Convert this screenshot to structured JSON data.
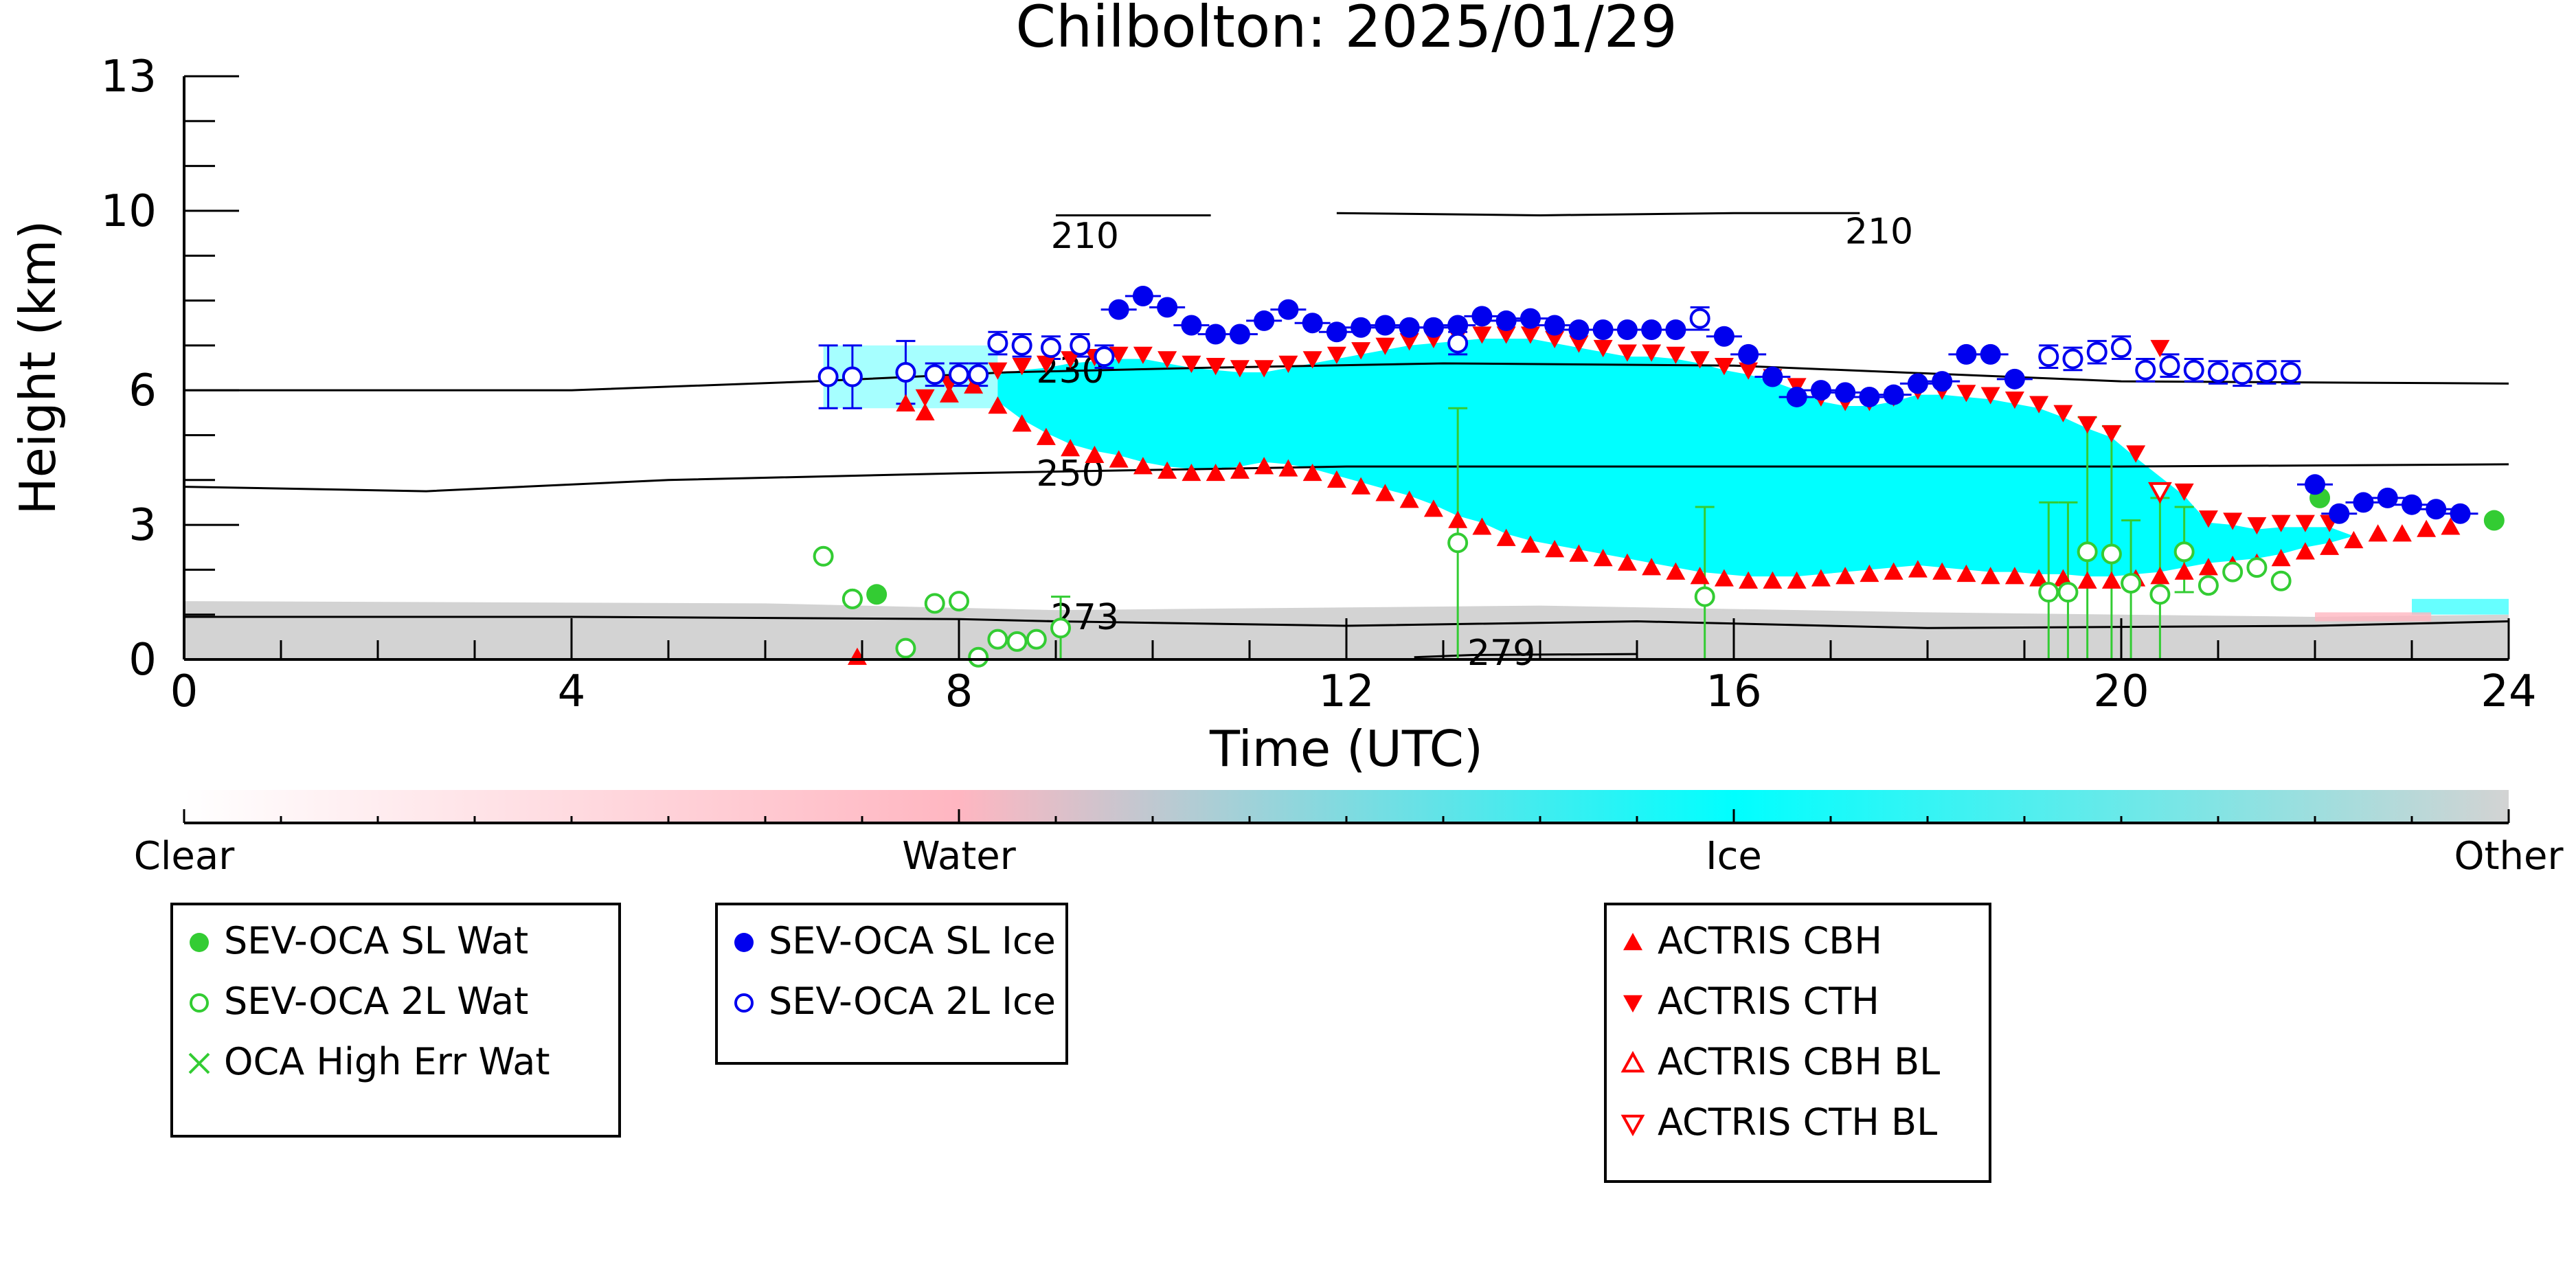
{
  "chart_data": {
    "type": "scatter",
    "title": "Chilbolton: 2025/01/29",
    "xlabel": "Time (UTC)",
    "ylabel": "Height (km)",
    "xlim": [
      0,
      24
    ],
    "ylim": [
      0,
      13
    ],
    "x_ticks": [
      "0",
      "4",
      "8",
      "12",
      "16",
      "20",
      "24"
    ],
    "y_ticks": [
      "0",
      "3",
      "6",
      "10",
      "13"
    ],
    "grid": false,
    "colorbar": {
      "labels": [
        "Clear",
        "Water",
        "Ice",
        "Other"
      ],
      "colors": {
        "clear": "#ffffff",
        "water": "#ffb6c1",
        "ice": "#00ffff",
        "other": "#d3d3d3"
      }
    },
    "contours": [
      {
        "label": "210",
        "points": [
          [
            9.0,
            9.9
          ],
          [
            10.6,
            9.9
          ]
        ]
      },
      {
        "label": "210",
        "points": [
          [
            11.9,
            9.95
          ],
          [
            14.0,
            9.9
          ],
          [
            16.0,
            9.95
          ],
          [
            17.3,
            9.95
          ]
        ]
      },
      {
        "label": "230",
        "points": [
          [
            0,
            6.0
          ],
          [
            4.0,
            6.0
          ],
          [
            6.5,
            6.2
          ],
          [
            8.5,
            6.4
          ],
          [
            10.5,
            6.5
          ],
          [
            13.0,
            6.6
          ],
          [
            16.0,
            6.55
          ],
          [
            20.0,
            6.2
          ],
          [
            24.0,
            6.15
          ]
        ]
      },
      {
        "label": "250",
        "points": [
          [
            0,
            3.85
          ],
          [
            2.5,
            3.75
          ],
          [
            5.0,
            4.0
          ],
          [
            8.0,
            4.15
          ],
          [
            12.0,
            4.3
          ],
          [
            16.0,
            4.3
          ],
          [
            20.0,
            4.3
          ],
          [
            24.0,
            4.35
          ]
        ]
      },
      {
        "label": "273",
        "points": [
          [
            0,
            0.95
          ],
          [
            4.0,
            0.95
          ],
          [
            8.0,
            0.9
          ],
          [
            9.0,
            0.85
          ],
          [
            12.0,
            0.75
          ],
          [
            15.0,
            0.85
          ],
          [
            18.0,
            0.7
          ],
          [
            22.0,
            0.75
          ],
          [
            24.0,
            0.85
          ]
        ]
      },
      {
        "label": "279",
        "points": [
          [
            12.7,
            0.05
          ],
          [
            13.3,
            0.1
          ],
          [
            15.0,
            0.12
          ]
        ]
      }
    ],
    "series": [
      {
        "name": "SEV-OCA SL Wat",
        "color": "#33cc33",
        "marker": "filled-circle",
        "points": [
          [
            6.9,
            1.35
          ],
          [
            7.15,
            1.45
          ],
          [
            22.05,
            3.6
          ],
          [
            23.85,
            3.1
          ]
        ]
      },
      {
        "name": "SEV-OCA 2L Wat",
        "color": "#33cc33",
        "marker": "open-circle",
        "points": [
          [
            6.6,
            2.3
          ],
          [
            6.9,
            1.35
          ],
          [
            7.45,
            0.25
          ],
          [
            7.75,
            1.25
          ],
          [
            8.0,
            1.3
          ],
          [
            8.2,
            0.05
          ],
          [
            8.4,
            0.45
          ],
          [
            8.6,
            0.4
          ],
          [
            8.8,
            0.45
          ],
          [
            9.05,
            0.7
          ],
          [
            13.15,
            2.6
          ],
          [
            15.7,
            1.4
          ],
          [
            19.25,
            1.5
          ],
          [
            19.45,
            1.5
          ],
          [
            19.65,
            2.4
          ],
          [
            19.9,
            2.35
          ],
          [
            20.1,
            1.7
          ],
          [
            20.4,
            1.45
          ],
          [
            20.65,
            2.4
          ],
          [
            20.9,
            1.65
          ],
          [
            21.15,
            1.95
          ],
          [
            21.4,
            2.05
          ],
          [
            21.65,
            1.75
          ]
        ]
      },
      {
        "name": "OCA High Err Wat",
        "color": "#33cc33",
        "marker": "x",
        "points": []
      },
      {
        "name": "SEV-OCA SL Ice",
        "color": "#0000ee",
        "marker": "filled-circle",
        "points": [
          [
            9.65,
            7.8
          ],
          [
            9.9,
            8.1
          ],
          [
            10.15,
            7.85
          ],
          [
            10.4,
            7.45
          ],
          [
            10.65,
            7.25
          ],
          [
            10.9,
            7.25
          ],
          [
            11.15,
            7.55
          ],
          [
            11.4,
            7.8
          ],
          [
            11.65,
            7.5
          ],
          [
            11.9,
            7.3
          ],
          [
            12.15,
            7.4
          ],
          [
            12.4,
            7.45
          ],
          [
            12.65,
            7.4
          ],
          [
            12.9,
            7.4
          ],
          [
            13.15,
            7.45
          ],
          [
            13.4,
            7.65
          ],
          [
            13.65,
            7.55
          ],
          [
            13.9,
            7.6
          ],
          [
            14.15,
            7.45
          ],
          [
            14.4,
            7.35
          ],
          [
            14.65,
            7.35
          ],
          [
            14.9,
            7.35
          ],
          [
            15.15,
            7.35
          ],
          [
            15.4,
            7.35
          ],
          [
            15.9,
            7.2
          ],
          [
            16.15,
            6.8
          ],
          [
            16.4,
            6.3
          ],
          [
            16.65,
            5.85
          ],
          [
            16.9,
            6.0
          ],
          [
            17.15,
            5.95
          ],
          [
            17.4,
            5.85
          ],
          [
            17.65,
            5.9
          ],
          [
            17.9,
            6.15
          ],
          [
            18.15,
            6.2
          ],
          [
            18.4,
            6.8
          ],
          [
            18.65,
            6.8
          ],
          [
            18.9,
            6.25
          ],
          [
            22.0,
            3.9
          ],
          [
            22.25,
            3.25
          ],
          [
            22.5,
            3.5
          ],
          [
            22.75,
            3.6
          ],
          [
            23.0,
            3.45
          ],
          [
            23.25,
            3.35
          ],
          [
            23.5,
            3.25
          ]
        ]
      },
      {
        "name": "SEV-OCA 2L Ice",
        "color": "#0000ee",
        "marker": "open-circle",
        "points": [
          [
            6.65,
            6.3
          ],
          [
            6.9,
            6.3
          ],
          [
            7.45,
            6.4
          ],
          [
            7.75,
            6.35
          ],
          [
            8.0,
            6.35
          ],
          [
            8.2,
            6.35
          ],
          [
            8.4,
            7.05
          ],
          [
            8.65,
            7.0
          ],
          [
            8.95,
            6.95
          ],
          [
            9.25,
            7.0
          ],
          [
            9.5,
            6.75
          ],
          [
            13.15,
            7.05
          ],
          [
            15.65,
            7.6
          ],
          [
            19.25,
            6.75
          ],
          [
            19.5,
            6.7
          ],
          [
            19.75,
            6.85
          ],
          [
            20.0,
            6.95
          ],
          [
            20.25,
            6.45
          ],
          [
            20.5,
            6.55
          ],
          [
            20.75,
            6.45
          ],
          [
            21.0,
            6.4
          ],
          [
            21.25,
            6.35
          ],
          [
            21.5,
            6.4
          ],
          [
            21.75,
            6.4
          ]
        ]
      },
      {
        "name": "ACTRIS CBH",
        "color": "#ff0000",
        "marker": "triangle-up",
        "points": [
          [
            6.95,
            0.05
          ],
          [
            7.45,
            5.7
          ],
          [
            7.65,
            5.5
          ],
          [
            7.9,
            5.9
          ],
          [
            8.15,
            6.1
          ],
          [
            8.4,
            5.65
          ],
          [
            8.65,
            5.25
          ],
          [
            8.9,
            4.95
          ],
          [
            9.15,
            4.7
          ],
          [
            9.4,
            4.55
          ],
          [
            9.65,
            4.45
          ],
          [
            9.9,
            4.3
          ],
          [
            10.15,
            4.2
          ],
          [
            10.4,
            4.15
          ],
          [
            10.65,
            4.15
          ],
          [
            10.9,
            4.2
          ],
          [
            11.15,
            4.3
          ],
          [
            11.4,
            4.25
          ],
          [
            11.65,
            4.15
          ],
          [
            11.9,
            4.0
          ],
          [
            12.15,
            3.85
          ],
          [
            12.4,
            3.7
          ],
          [
            12.65,
            3.55
          ],
          [
            12.9,
            3.35
          ],
          [
            13.15,
            3.1
          ],
          [
            13.4,
            2.95
          ],
          [
            13.65,
            2.7
          ],
          [
            13.9,
            2.55
          ],
          [
            14.15,
            2.45
          ],
          [
            14.4,
            2.35
          ],
          [
            14.65,
            2.25
          ],
          [
            14.9,
            2.15
          ],
          [
            15.15,
            2.05
          ],
          [
            15.4,
            1.95
          ],
          [
            15.65,
            1.85
          ],
          [
            15.9,
            1.8
          ],
          [
            16.15,
            1.75
          ],
          [
            16.4,
            1.75
          ],
          [
            16.65,
            1.75
          ],
          [
            16.9,
            1.8
          ],
          [
            17.15,
            1.85
          ],
          [
            17.4,
            1.9
          ],
          [
            17.65,
            1.95
          ],
          [
            17.9,
            2.0
          ],
          [
            18.15,
            1.95
          ],
          [
            18.4,
            1.9
          ],
          [
            18.65,
            1.85
          ],
          [
            18.9,
            1.85
          ],
          [
            19.15,
            1.8
          ],
          [
            19.4,
            1.8
          ],
          [
            19.65,
            1.75
          ],
          [
            19.9,
            1.75
          ],
          [
            20.15,
            1.8
          ],
          [
            20.4,
            1.85
          ],
          [
            20.65,
            1.95
          ],
          [
            20.9,
            2.05
          ],
          [
            21.15,
            2.1
          ],
          [
            21.4,
            2.15
          ],
          [
            21.65,
            2.25
          ],
          [
            21.9,
            2.4
          ],
          [
            22.15,
            2.5
          ],
          [
            22.4,
            2.65
          ],
          [
            22.65,
            2.8
          ],
          [
            22.9,
            2.8
          ],
          [
            23.15,
            2.9
          ],
          [
            23.4,
            2.95
          ]
        ]
      },
      {
        "name": "ACTRIS CTH",
        "color": "#ff0000",
        "marker": "triangle-down",
        "points": [
          [
            7.65,
            5.85
          ],
          [
            7.9,
            6.15
          ],
          [
            8.15,
            6.25
          ],
          [
            8.4,
            6.45
          ],
          [
            8.65,
            6.55
          ],
          [
            8.9,
            6.6
          ],
          [
            9.15,
            6.7
          ],
          [
            9.4,
            6.75
          ],
          [
            9.65,
            6.8
          ],
          [
            9.9,
            6.8
          ],
          [
            10.15,
            6.7
          ],
          [
            10.4,
            6.6
          ],
          [
            10.65,
            6.55
          ],
          [
            10.9,
            6.5
          ],
          [
            11.15,
            6.5
          ],
          [
            11.4,
            6.6
          ],
          [
            11.65,
            6.7
          ],
          [
            11.9,
            6.8
          ],
          [
            12.15,
            6.9
          ],
          [
            12.4,
            7.0
          ],
          [
            12.65,
            7.1
          ],
          [
            12.9,
            7.15
          ],
          [
            13.15,
            7.2
          ],
          [
            13.4,
            7.25
          ],
          [
            13.65,
            7.25
          ],
          [
            13.9,
            7.25
          ],
          [
            14.15,
            7.15
          ],
          [
            14.4,
            7.05
          ],
          [
            14.65,
            6.95
          ],
          [
            14.9,
            6.85
          ],
          [
            15.15,
            6.85
          ],
          [
            15.4,
            6.8
          ],
          [
            15.65,
            6.7
          ],
          [
            15.9,
            6.55
          ],
          [
            16.15,
            6.45
          ],
          [
            16.4,
            6.3
          ],
          [
            16.65,
            6.1
          ],
          [
            16.9,
            5.85
          ],
          [
            17.15,
            5.75
          ],
          [
            17.4,
            5.75
          ],
          [
            17.65,
            5.85
          ],
          [
            17.9,
            6.0
          ],
          [
            18.15,
            6.0
          ],
          [
            18.4,
            5.95
          ],
          [
            18.65,
            5.9
          ],
          [
            18.9,
            5.8
          ],
          [
            19.15,
            5.7
          ],
          [
            19.4,
            5.5
          ],
          [
            19.65,
            5.25
          ],
          [
            19.9,
            5.05
          ],
          [
            20.15,
            4.6
          ],
          [
            20.4,
            6.95
          ],
          [
            20.65,
            3.75
          ],
          [
            20.9,
            3.15
          ],
          [
            21.15,
            3.1
          ],
          [
            21.4,
            3.0
          ],
          [
            21.65,
            3.05
          ],
          [
            21.9,
            3.05
          ],
          [
            22.15,
            3.05
          ]
        ]
      },
      {
        "name": "ACTRIS CBH BL",
        "color": "#ff0000",
        "marker": "open-triangle-up",
        "points": []
      },
      {
        "name": "ACTRIS CTH BL",
        "color": "#ff0000",
        "marker": "open-triangle-down",
        "points": [
          [
            20.4,
            3.75
          ]
        ]
      }
    ],
    "legends": [
      [
        "SEV-OCA SL Wat",
        "SEV-OCA 2L Wat",
        "OCA High Err Wat"
      ],
      [
        "SEV-OCA SL Ice",
        "SEV-OCA 2L Ice"
      ],
      [
        "ACTRIS CBH",
        "ACTRIS CTH",
        "ACTRIS CBH BL",
        "ACTRIS CTH BL"
      ]
    ]
  }
}
